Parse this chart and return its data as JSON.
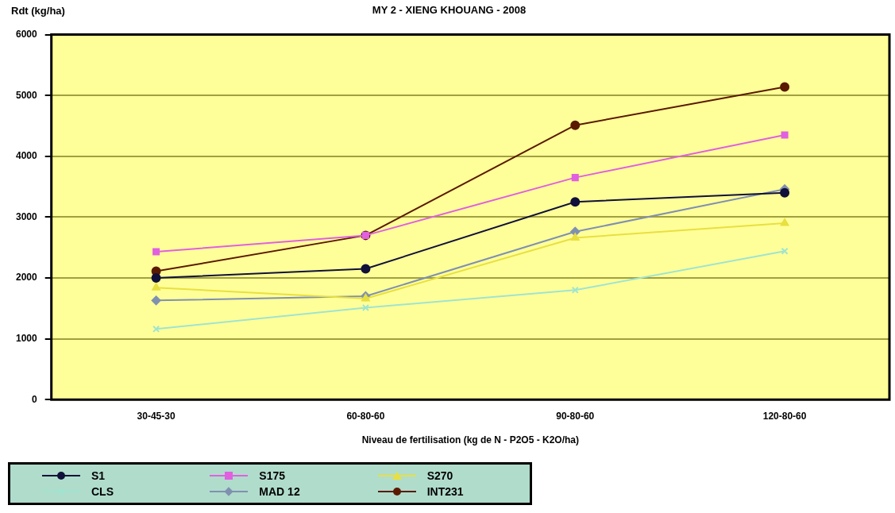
{
  "chart_data": {
    "type": "line",
    "title": "MY 2 - XIENG KHOUANG - 2008",
    "ylabel": "Rdt (kg/ha)",
    "xlabel": "Niveau de fertilisation (kg de N - P2O5 - K2O/ha)",
    "categories": [
      "30-45-30",
      "60-80-60",
      "90-80-60",
      "120-80-60"
    ],
    "ylim": [
      0,
      6000
    ],
    "yticks": [
      0,
      1000,
      2000,
      3000,
      4000,
      5000,
      6000
    ],
    "grid": "y",
    "legend": "bottom left",
    "series": [
      {
        "name": "S1",
        "color": "#10103a",
        "marker": "circle",
        "values": [
          2000,
          2150,
          3250,
          3400
        ]
      },
      {
        "name": "S175",
        "color": "#e060e0",
        "marker": "square",
        "values": [
          2430,
          2700,
          3650,
          4350
        ]
      },
      {
        "name": "S270",
        "color": "#e8e040",
        "marker": "triangle",
        "values": [
          1840,
          1660,
          2660,
          2900
        ]
      },
      {
        "name": "CLS",
        "color": "#a0e4d0",
        "marker": "cross",
        "values": [
          1160,
          1510,
          1800,
          2440
        ]
      },
      {
        "name": "MAD 12",
        "color": "#8090b0",
        "marker": "diamond",
        "values": [
          1630,
          1700,
          2760,
          3460
        ]
      },
      {
        "name": "INT231",
        "color": "#5a1a00",
        "marker": "circle",
        "values": [
          2110,
          2700,
          4510,
          5140
        ]
      }
    ]
  }
}
